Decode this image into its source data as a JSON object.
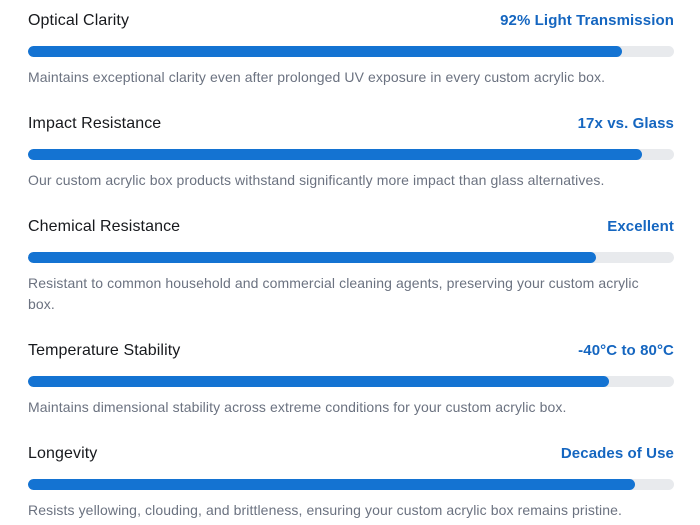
{
  "theme": {
    "accent_color": "#1473d2",
    "value_text_color": "#1566c0",
    "track_color": "#e8eaed",
    "label_color": "#17191d",
    "description_color": "#6b7280"
  },
  "chart_data": {
    "type": "bar",
    "categories": [
      "Optical Clarity",
      "Impact Resistance",
      "Chemical Resistance",
      "Temperature Stability",
      "Longevity"
    ],
    "values": [
      92,
      95,
      88,
      90,
      94
    ],
    "value_labels": [
      "92% Light Transmission",
      "17x vs. Glass",
      "Excellent",
      "-40°C to 80°C",
      "Decades of Use"
    ],
    "xlim": [
      0,
      100
    ]
  },
  "sections": [
    {
      "label": "Optical Clarity",
      "value": "92% Light Transmission",
      "percent": 92,
      "description": "Maintains exceptional clarity even after prolonged UV exposure in every custom acrylic box."
    },
    {
      "label": "Impact Resistance",
      "value": "17x vs. Glass",
      "percent": 95,
      "description": "Our custom acrylic box products withstand significantly more impact than glass alternatives."
    },
    {
      "label": "Chemical Resistance",
      "value": "Excellent",
      "percent": 88,
      "description": "Resistant to common household and commercial cleaning agents, preserving your custom acrylic box."
    },
    {
      "label": "Temperature Stability",
      "value": "-40°C to 80°C",
      "percent": 90,
      "description": "Maintains dimensional stability across extreme conditions for your custom acrylic box."
    },
    {
      "label": "Longevity",
      "value": "Decades of Use",
      "percent": 94,
      "description": "Resists yellowing, clouding, and brittleness, ensuring your custom acrylic box remains pristine."
    }
  ]
}
